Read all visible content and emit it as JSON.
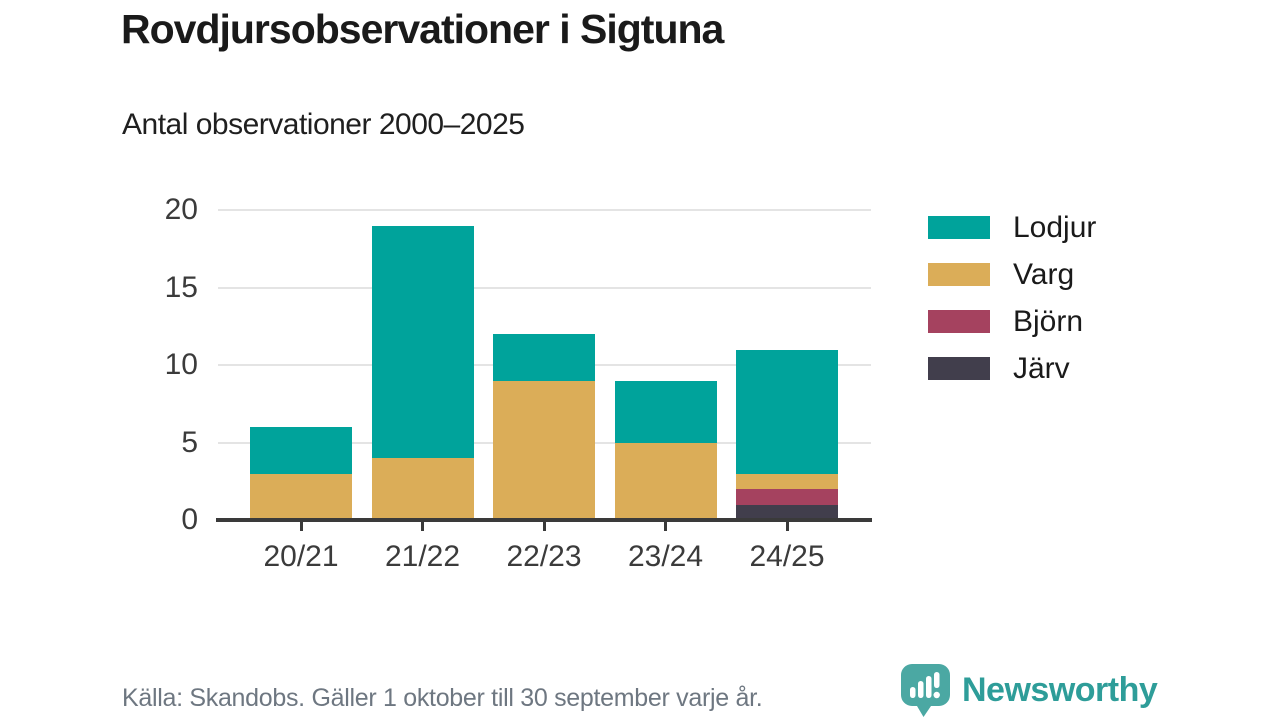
{
  "title": "Rovdjursobservationer i Sigtuna",
  "subtitle": "Antal observationer 2000–2025",
  "footer": {
    "source_note": "Källa: Skandobs. Gäller 1 oktober till 30 september varje år."
  },
  "branding": {
    "logo_text": "Newsworthy",
    "logo_icon": "speech-bubble-bar-chart-icon",
    "text_color": "#2e9d99",
    "icon_color": "#4ba8a3"
  },
  "colors": {
    "background": "#ffffff",
    "title_text": "#1a1a1a",
    "axis_text": "#3b3b3b",
    "axis_line": "#3a3a3a",
    "gridline": "#e4e4e4",
    "footer_text": "#6e7781"
  },
  "chart_data": {
    "type": "bar",
    "stacked": true,
    "title": "Rovdjursobservationer i Sigtuna",
    "subtitle": "Antal observationer 2000–2025",
    "categories": [
      "20/21",
      "21/22",
      "22/23",
      "23/24",
      "24/25"
    ],
    "series": [
      {
        "name": "Lodjur",
        "color": "#00a39b",
        "values": [
          3,
          15,
          3,
          4,
          8
        ]
      },
      {
        "name": "Varg",
        "color": "#dbad58",
        "values": [
          3,
          4,
          9,
          5,
          1
        ]
      },
      {
        "name": "Björn",
        "color": "#a5425f",
        "values": [
          0,
          0,
          0,
          0,
          1
        ]
      },
      {
        "name": "Järv",
        "color": "#413e4c",
        "values": [
          0,
          0,
          0,
          0,
          1
        ]
      }
    ],
    "totals": [
      6,
      19,
      12,
      9,
      11
    ],
    "xlabel": "",
    "ylabel": "",
    "ylim": [
      0,
      20
    ],
    "yticks": [
      0,
      5,
      10,
      15,
      20
    ],
    "grid": true,
    "legend_position": "right",
    "stack_order_bottom_to_top": [
      "Järv",
      "Björn",
      "Varg",
      "Lodjur"
    ]
  }
}
